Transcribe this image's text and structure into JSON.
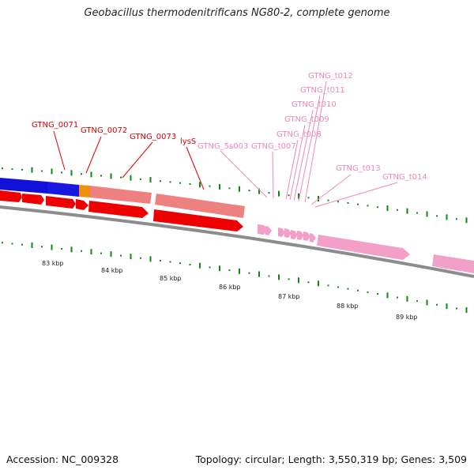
{
  "title": "Geobacillus thermodenitrificans NG80-2, complete genome",
  "footer": {
    "accession": "Accession: NC_009328",
    "summary": "Topology: circular; Length: 3,550,319 bp; Genes: 3,509"
  },
  "colors": {
    "gene_dark": "#ee0000",
    "gene_light": "#ee8080",
    "rna_pink": "#f2a0c8",
    "blue_feature": "#1010d8",
    "orange_feature": "#f09010",
    "label_red": "#dd0000",
    "label_pink": "#ee88bb",
    "tick_green": "#118811",
    "backbone": "#888888"
  },
  "kbp_labels": [
    "83 kbp",
    "84 kbp",
    "85 kbp",
    "86 kbp",
    "87 kbp",
    "88 kbp",
    "89 kbp"
  ],
  "gene_labels": {
    "red": [
      "GTNG_0071",
      "GTNG_0072",
      "GTNG_0073",
      "lysS"
    ],
    "pink": [
      "GTNG_5s003",
      "GTNG_t007",
      "GTNG_t008",
      "GTNG_t009",
      "GTNG_t010",
      "GTNG_t011",
      "GTNG_t012",
      "GTNG_t013",
      "GTNG_t014"
    ]
  }
}
